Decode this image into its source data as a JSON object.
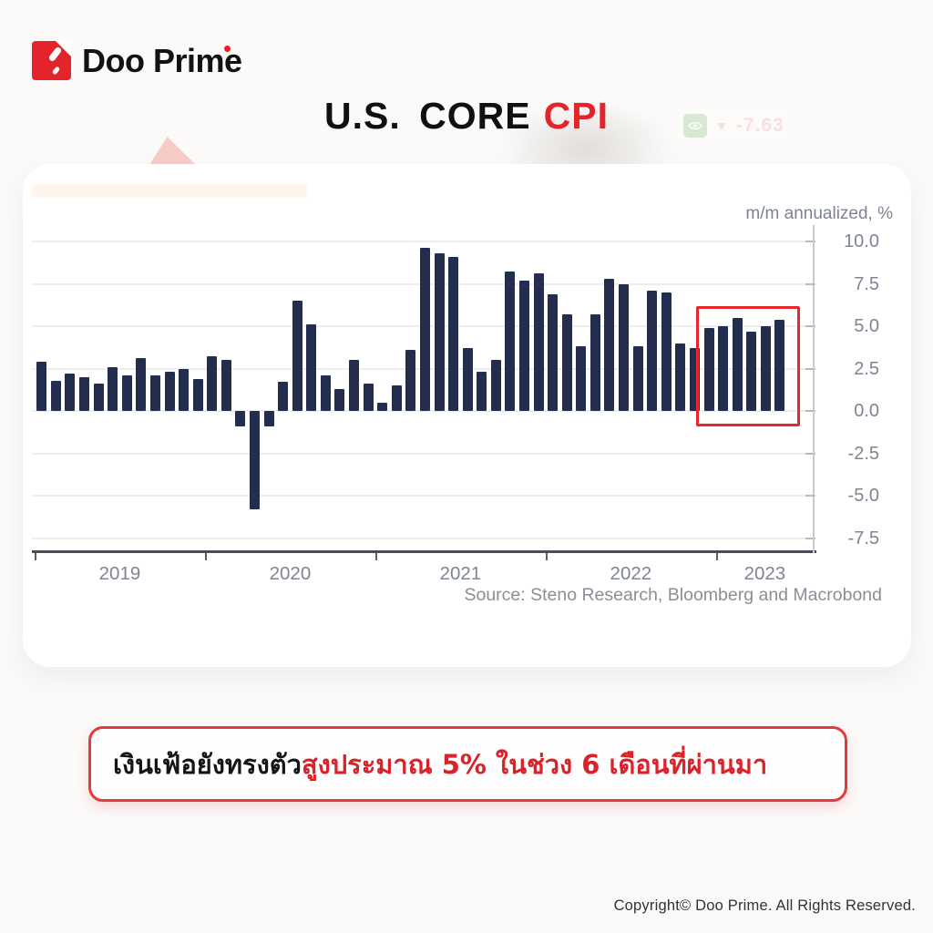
{
  "header": {
    "brand": "Doo Prime",
    "title_main": "U.S. CORE",
    "title_accent": "CPI",
    "ticker": {
      "arrow": "▼",
      "value": "-7.63"
    }
  },
  "callout": {
    "text_black": "เงินเฟ้อยังทรงตัว",
    "text_red": "สูงประมาณ 5% ในช่วง 6 เดือนที่ผ่านมา"
  },
  "footer": {
    "copyright": "Copyright© Doo Prime. All Rights Reserved."
  },
  "colors": {
    "bar": "#232d4e",
    "accent_red": "#e3242b",
    "highlight_red": "#e8262c",
    "tick_text": "#7e8494"
  },
  "chart_data": {
    "type": "bar",
    "title": "U.S. Core CPI",
    "unit_label": "m/m annualized, %",
    "source": "Source: Steno Research, Bloomberg and Macrobond",
    "ylabel": "m/m annualized, %",
    "ylim": [
      -7.5,
      10.0
    ],
    "yticks": [
      10.0,
      7.5,
      5.0,
      2.5,
      0.0,
      -2.5,
      -5.0,
      -7.5
    ],
    "ytick_labels": [
      "10.0",
      "7.5",
      "5.0",
      "2.5",
      "0.0",
      "-2.5",
      "-5.0",
      "-7.5"
    ],
    "xticks_years": [
      "2019",
      "2020",
      "2021",
      "2022",
      "2023"
    ],
    "grid": true,
    "axis_side": "right",
    "x": [
      "2019-01",
      "2019-02",
      "2019-03",
      "2019-04",
      "2019-05",
      "2019-06",
      "2019-07",
      "2019-08",
      "2019-09",
      "2019-10",
      "2019-11",
      "2019-12",
      "2020-01",
      "2020-02",
      "2020-03",
      "2020-04",
      "2020-05",
      "2020-06",
      "2020-07",
      "2020-08",
      "2020-09",
      "2020-10",
      "2020-11",
      "2020-12",
      "2021-01",
      "2021-02",
      "2021-03",
      "2021-04",
      "2021-05",
      "2021-06",
      "2021-07",
      "2021-08",
      "2021-09",
      "2021-10",
      "2021-11",
      "2021-12",
      "2022-01",
      "2022-02",
      "2022-03",
      "2022-04",
      "2022-05",
      "2022-06",
      "2022-07",
      "2022-08",
      "2022-09",
      "2022-10",
      "2022-11",
      "2022-12",
      "2023-01",
      "2023-02",
      "2023-03",
      "2023-04",
      "2023-05"
    ],
    "values": [
      2.9,
      1.8,
      2.2,
      2.0,
      1.6,
      2.6,
      2.1,
      3.1,
      2.1,
      2.3,
      2.5,
      1.9,
      3.2,
      3.0,
      -0.9,
      -5.8,
      -0.9,
      1.7,
      6.5,
      5.1,
      2.1,
      1.3,
      3.0,
      1.6,
      0.5,
      1.5,
      3.6,
      9.6,
      9.3,
      9.1,
      3.7,
      2.3,
      3.0,
      8.2,
      7.7,
      8.1,
      6.9,
      5.7,
      3.8,
      5.7,
      7.8,
      7.5,
      3.8,
      7.1,
      7.0,
      4.0,
      3.7,
      4.9,
      5.0,
      5.5,
      4.7,
      5.0,
      5.4
    ],
    "highlight": {
      "from": "2022-12",
      "to": "2023-05",
      "ymin": -0.6,
      "ymax": 6.2,
      "color": "#e8262c",
      "meaning": "last 6 months around 5%"
    }
  }
}
